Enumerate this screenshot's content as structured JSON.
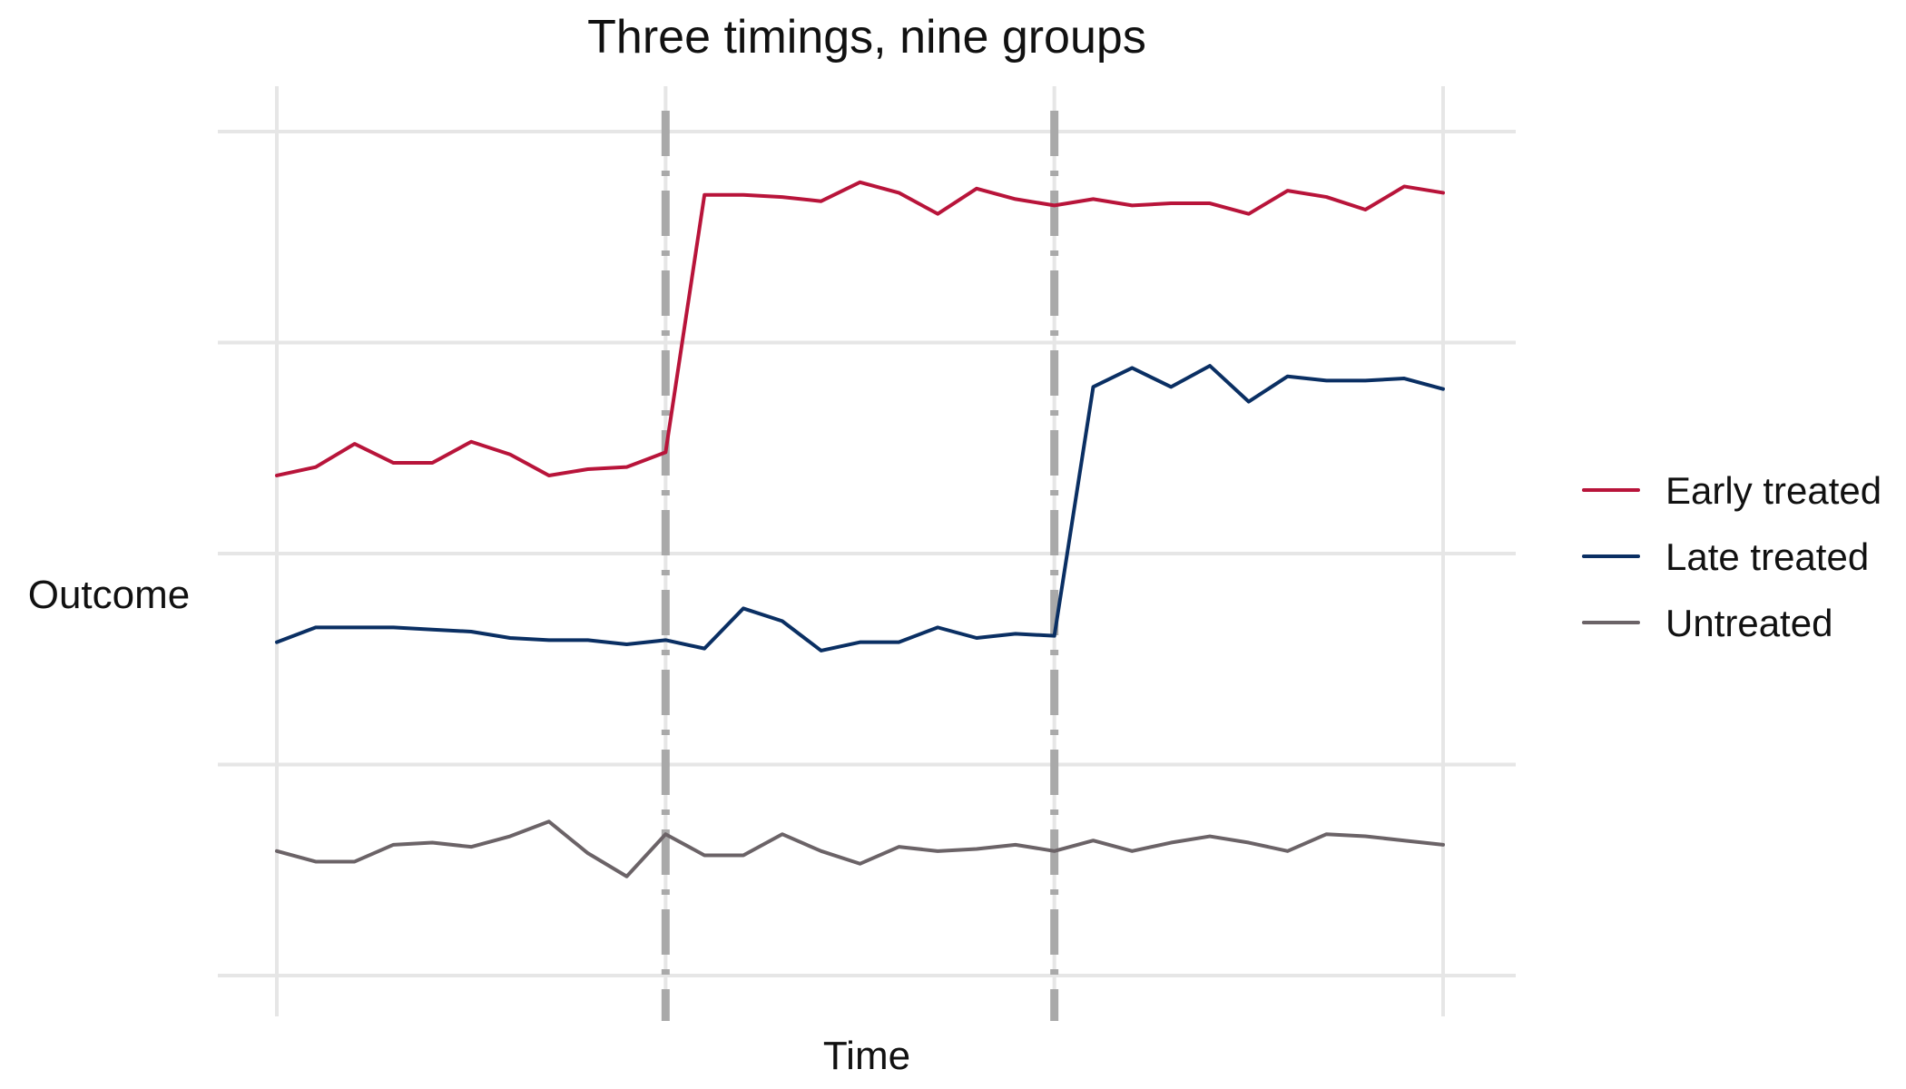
{
  "chart_data": {
    "type": "line",
    "title": "Three timings, nine groups",
    "xlabel": "Time",
    "ylabel": "Outcome",
    "xlim": [
      1,
      31
    ],
    "ylim": [
      0,
      4
    ],
    "grid": true,
    "legend_placement": "right",
    "event_lines": [
      11,
      21
    ],
    "x": [
      1,
      2,
      3,
      4,
      5,
      6,
      7,
      8,
      9,
      10,
      11,
      12,
      13,
      14,
      15,
      16,
      17,
      18,
      19,
      20,
      21,
      22,
      23,
      24,
      25,
      26,
      27,
      28,
      29,
      30,
      31
    ],
    "series": [
      {
        "name": "Early treated",
        "color": "#b8143a",
        "values": [
          2.37,
          2.41,
          2.52,
          2.43,
          2.43,
          2.53,
          2.47,
          2.37,
          2.4,
          2.41,
          2.48,
          3.7,
          3.7,
          3.69,
          3.67,
          3.76,
          3.71,
          3.61,
          3.73,
          3.68,
          3.65,
          3.68,
          3.65,
          3.66,
          3.66,
          3.61,
          3.72,
          3.69,
          3.63,
          3.74,
          3.71
        ]
      },
      {
        "name": "Late treated",
        "color": "#0a2f63",
        "values": [
          1.58,
          1.65,
          1.65,
          1.65,
          1.64,
          1.63,
          1.6,
          1.59,
          1.59,
          1.57,
          1.59,
          1.55,
          1.74,
          1.68,
          1.54,
          1.58,
          1.58,
          1.65,
          1.6,
          1.62,
          1.61,
          2.79,
          2.88,
          2.79,
          2.89,
          2.72,
          2.84,
          2.82,
          2.82,
          2.83,
          2.78
        ]
      },
      {
        "name": "Untreated",
        "color": "#6b6367",
        "values": [
          0.59,
          0.54,
          0.54,
          0.62,
          0.63,
          0.61,
          0.66,
          0.73,
          0.58,
          0.47,
          0.67,
          0.57,
          0.57,
          0.67,
          0.59,
          0.53,
          0.61,
          0.59,
          0.6,
          0.62,
          0.59,
          0.64,
          0.59,
          0.63,
          0.66,
          0.63,
          0.59,
          0.67,
          0.66,
          0.64,
          0.62
        ]
      }
    ]
  }
}
